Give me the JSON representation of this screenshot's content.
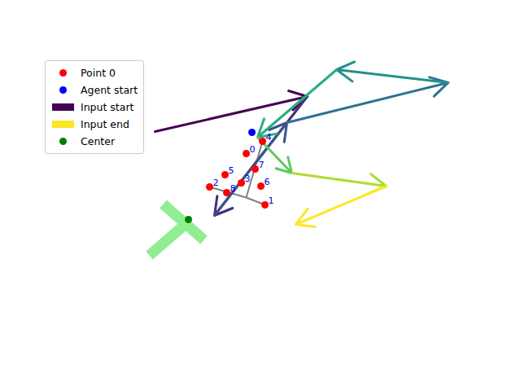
{
  "chart_data": {
    "type": "scatter",
    "tick_labels": false,
    "xlim": [
      0,
      640
    ],
    "ylim": [
      480,
      0
    ],
    "legend": "upper left",
    "region": {
      "color": "#90ee90",
      "segments": [
        {
          "x1": 200,
          "y1": 250,
          "x2": 250,
          "y2": 294
        },
        {
          "x1": 183,
          "y1": 313,
          "x2": 228,
          "y2": 274
        }
      ]
    },
    "skeleton": {
      "color": "gray",
      "segments": [
        {
          "x1": 322,
          "y1": 173,
          "x2": 302,
          "y2": 242
        },
        {
          "x1": 257,
          "y1": 229,
          "x2": 302,
          "y2": 242
        },
        {
          "x1": 302,
          "y1": 242,
          "x2": 325,
          "y2": 251
        }
      ]
    },
    "inputs": {
      "segments": [
        {
          "x1": 190,
          "y1": 161,
          "x2": 377,
          "y2": 118,
          "color": "#440154"
        },
        {
          "x1": 377,
          "y1": 118,
          "x2": 263,
          "y2": 264,
          "color": "#472d7b"
        },
        {
          "x1": 263,
          "y1": 264,
          "x2": 352,
          "y2": 150,
          "color": "#3b528b"
        },
        {
          "x1": 352,
          "y1": 150,
          "x2": 550,
          "y2": 101,
          "color": "#2c728e"
        },
        {
          "x1": 550,
          "y1": 101,
          "x2": 413,
          "y2": 85,
          "color": "#21918c"
        },
        {
          "x1": 413,
          "y1": 85,
          "x2": 316,
          "y2": 168,
          "color": "#28ae80"
        },
        {
          "x1": 316,
          "y1": 168,
          "x2": 358,
          "y2": 212,
          "color": "#5ec962"
        },
        {
          "x1": 358,
          "y1": 212,
          "x2": 474,
          "y2": 228,
          "color": "#addc30"
        },
        {
          "x1": 474,
          "y1": 228,
          "x2": 363,
          "y2": 275,
          "color": "#fde725"
        }
      ]
    },
    "series": [
      {
        "name": "Point 0",
        "color": "red",
        "marker": "circle",
        "x": [
          302,
          325,
          257,
          296,
          322,
          276,
          320,
          313,
          278
        ],
        "y": [
          188,
          251,
          229,
          224,
          173,
          214,
          228,
          207,
          236
        ],
        "labels": [
          "0",
          "1",
          "2",
          "3",
          "4",
          "5",
          "6",
          "7",
          "8"
        ]
      },
      {
        "name": "Agent start",
        "color": "blue",
        "marker": "circle",
        "x": [
          309
        ],
        "y": [
          162
        ]
      },
      {
        "name": "Input start",
        "color": "#440154",
        "marker": "square"
      },
      {
        "name": "Input end",
        "color": "#fde725",
        "marker": "square"
      },
      {
        "name": "Center",
        "color": "green",
        "marker": "circle",
        "x": [
          231
        ],
        "y": [
          269
        ]
      }
    ]
  }
}
